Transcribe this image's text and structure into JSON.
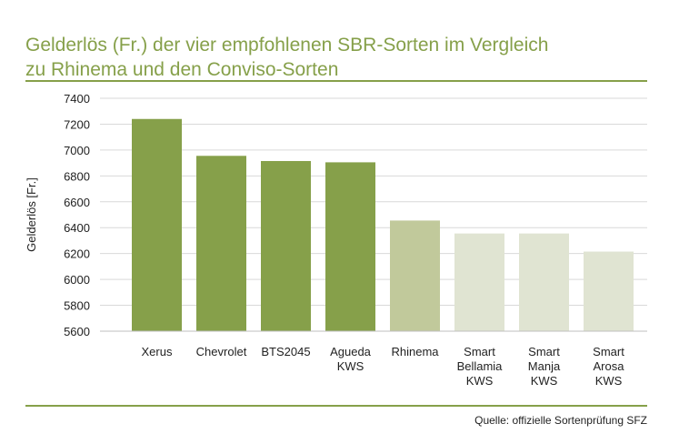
{
  "title_lines": [
    "Gelderlös (Fr.) der vier empfohlenen SBR-Sorten im Vergleich",
    "zu Rhinema und den Conviso-Sorten"
  ],
  "source": "Quelle: offizielle Sortenprüfung SFZ",
  "colors": {
    "accent": "#86a04a",
    "recommended": "#86a04a",
    "rhinema": "#c1c99b",
    "conviso": "#e0e4d2",
    "grid": "#d9d9d9"
  },
  "chart_data": {
    "type": "bar",
    "title": "Gelderlös (Fr.) der vier empfohlenen SBR-Sorten im Vergleich zu Rhinema und den Conviso-Sorten",
    "xlabel": "",
    "ylabel": "Gelderlös [Fr.]",
    "ylim": [
      5600,
      7400
    ],
    "yticks": [
      5600,
      5800,
      6000,
      6200,
      6400,
      6600,
      6800,
      7000,
      7200,
      7400
    ],
    "grid": true,
    "legend": "none",
    "categories": [
      [
        "Xerus"
      ],
      [
        "Chevrolet"
      ],
      [
        "BTS2045"
      ],
      [
        "Agueda",
        "KWS"
      ],
      [
        "Rhinema"
      ],
      [
        "Smart",
        "Bellamia",
        "KWS"
      ],
      [
        "Smart",
        "Manja",
        "KWS"
      ],
      [
        "Smart",
        "Arosa",
        "KWS"
      ]
    ],
    "values": [
      7240,
      6955,
      6915,
      6905,
      6455,
      6355,
      6355,
      6215
    ],
    "bar_groups": [
      "recommended",
      "recommended",
      "recommended",
      "recommended",
      "rhinema",
      "conviso",
      "conviso",
      "conviso"
    ]
  }
}
